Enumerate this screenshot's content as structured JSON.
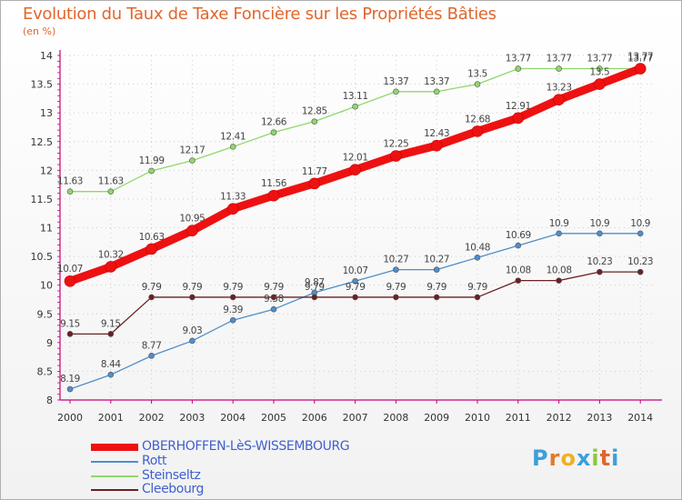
{
  "chart_data": {
    "type": "line",
    "title": "Evolution du Taux de Taxe Foncière sur les Propriétés Bâties",
    "unit_label": "(en %)",
    "x": [
      "2000",
      "2001",
      "2002",
      "2003",
      "2004",
      "2005",
      "2006",
      "2007",
      "2008",
      "2009",
      "2010",
      "2011",
      "2012",
      "2013",
      "2014"
    ],
    "yticks": [
      "8",
      "8.5",
      "9",
      "9.5",
      "10",
      "10.5",
      "11",
      "11.5",
      "12",
      "12.5",
      "13",
      "13.5",
      "14"
    ],
    "ylim": [
      8,
      14
    ],
    "series": [
      {
        "name": "OBERHOFFEN-LèS-WISSEMBOURG",
        "color": "#ee1111",
        "values": [
          10.07,
          10.32,
          10.63,
          10.95,
          11.33,
          11.56,
          11.77,
          12.01,
          12.25,
          12.43,
          12.68,
          12.91,
          13.23,
          13.5,
          13.77
        ],
        "labels": [
          "10.07",
          "10.32",
          "10.63",
          "10.95",
          "11.33",
          "11.56",
          "11.77",
          "12.01",
          "12.25",
          "12.43",
          "12.68",
          "12.91",
          "13.23",
          "13.5",
          "13.77"
        ]
      },
      {
        "name": "Rott",
        "color": "#4f8ec9",
        "values": [
          8.19,
          8.44,
          8.77,
          9.03,
          9.39,
          9.58,
          9.87,
          10.07,
          10.27,
          10.27,
          10.48,
          10.69,
          10.9,
          10.9,
          10.9
        ],
        "labels": [
          "8.19",
          "8.44",
          "8.77",
          "9.03",
          "9.39",
          "9.58",
          "9.87",
          "10.07",
          "10.27",
          "10.27",
          "10.48",
          "10.69",
          "10.9",
          "10.9",
          "10.9"
        ]
      },
      {
        "name": "Steinseltz",
        "color": "#8fd86a",
        "values": [
          11.63,
          11.63,
          11.99,
          12.17,
          12.41,
          12.66,
          12.85,
          13.11,
          13.37,
          13.37,
          13.5,
          13.77,
          13.77,
          13.77,
          13.77
        ],
        "labels": [
          "11.63",
          "11.63",
          "11.99",
          "12.17",
          "12.41",
          "12.66",
          "12.85",
          "13.11",
          "13.37",
          "13.37",
          "13.5",
          "13.77",
          "13.77",
          "13.77",
          "13.77"
        ]
      },
      {
        "name": "Cleebourg",
        "color": "#6b2020",
        "values": [
          9.15,
          9.15,
          9.79,
          9.79,
          9.79,
          9.79,
          9.79,
          9.79,
          9.79,
          9.79,
          9.79,
          10.08,
          10.08,
          10.23,
          10.23
        ],
        "labels": [
          "9.15",
          "9.15",
          "9.79",
          "9.79",
          "9.79",
          "9.79",
          "9.79",
          "9.79",
          "9.79",
          "9.79",
          "9.79",
          "10.08",
          "10.08",
          "10.23",
          "10.23"
        ]
      }
    ]
  },
  "logo_text": {
    "p": "P",
    "r": "r",
    "o": "o",
    "x": "x",
    "i": "i",
    "t": "t",
    "i2": "i"
  }
}
